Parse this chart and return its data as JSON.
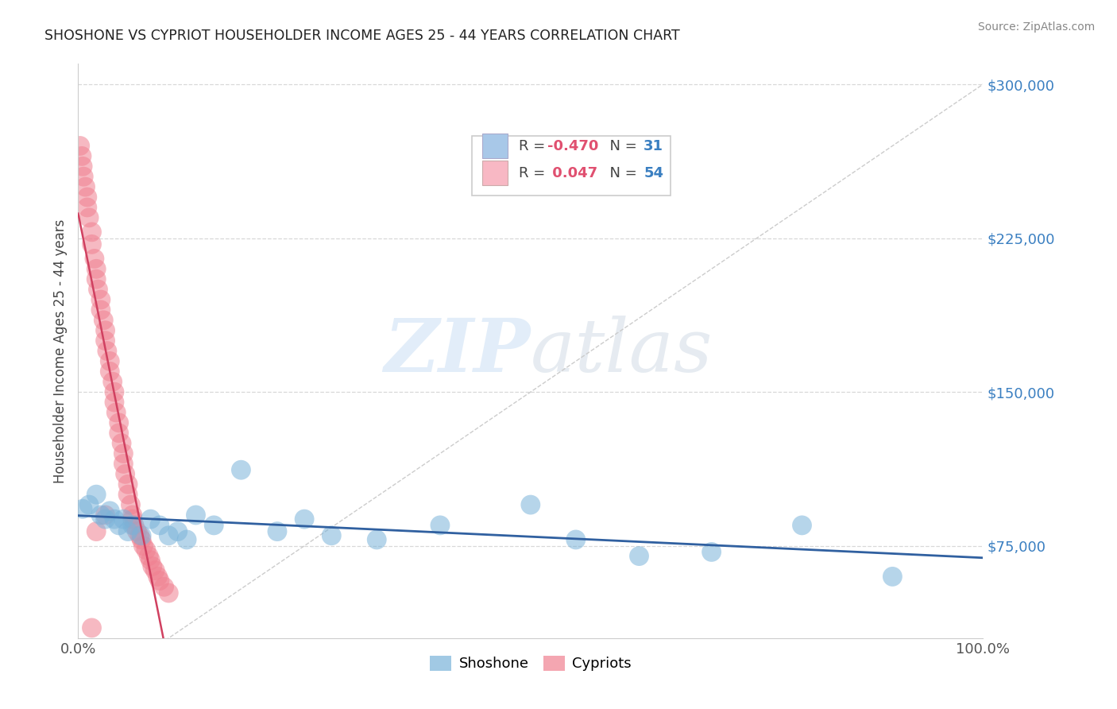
{
  "title": "SHOSHONE VS CYPRIOT HOUSEHOLDER INCOME AGES 25 - 44 YEARS CORRELATION CHART",
  "source": "Source: ZipAtlas.com",
  "ylabel": "Householder Income Ages 25 - 44 years",
  "shoshone_color": "#7ab3d9",
  "cypriot_color": "#f08090",
  "shoshone_line_color": "#3060a0",
  "cypriot_line_color": "#d04060",
  "diagonal_color": "#cccccc",
  "R_shoshone": -0.47,
  "N_shoshone": 31,
  "R_cypriot": 0.047,
  "N_cypriot": 54,
  "shoshone_points_x": [
    0.5,
    1.2,
    2.0,
    2.5,
    3.0,
    3.5,
    4.0,
    4.5,
    5.0,
    5.5,
    6.0,
    7.0,
    8.0,
    9.0,
    10.0,
    11.0,
    12.0,
    13.0,
    15.0,
    18.0,
    22.0,
    25.0,
    28.0,
    33.0,
    40.0,
    50.0,
    55.0,
    62.0,
    70.0,
    80.0,
    90.0
  ],
  "shoshone_points_y": [
    93000,
    95000,
    100000,
    90000,
    88000,
    92000,
    88000,
    85000,
    88000,
    82000,
    85000,
    80000,
    88000,
    85000,
    80000,
    82000,
    78000,
    90000,
    85000,
    112000,
    82000,
    88000,
    80000,
    78000,
    85000,
    95000,
    78000,
    70000,
    72000,
    85000,
    60000
  ],
  "cypriot_points_x": [
    0.2,
    0.4,
    0.5,
    0.6,
    0.8,
    1.0,
    1.0,
    1.2,
    1.5,
    1.5,
    1.8,
    2.0,
    2.0,
    2.2,
    2.5,
    2.5,
    2.8,
    3.0,
    3.0,
    3.2,
    3.5,
    3.5,
    3.8,
    4.0,
    4.0,
    4.2,
    4.5,
    4.5,
    4.8,
    5.0,
    5.0,
    5.2,
    5.5,
    5.5,
    5.8,
    6.0,
    6.0,
    6.2,
    6.5,
    6.8,
    7.0,
    7.2,
    7.5,
    7.8,
    8.0,
    8.2,
    8.5,
    8.8,
    9.0,
    9.5,
    10.0,
    2.0,
    3.0,
    1.5
  ],
  "cypriot_points_y": [
    270000,
    265000,
    260000,
    255000,
    250000,
    245000,
    240000,
    235000,
    228000,
    222000,
    215000,
    210000,
    205000,
    200000,
    195000,
    190000,
    185000,
    180000,
    175000,
    170000,
    165000,
    160000,
    155000,
    150000,
    145000,
    140000,
    135000,
    130000,
    125000,
    120000,
    115000,
    110000,
    105000,
    100000,
    95000,
    90000,
    88000,
    85000,
    82000,
    80000,
    78000,
    75000,
    73000,
    70000,
    68000,
    65000,
    63000,
    60000,
    58000,
    55000,
    52000,
    82000,
    90000,
    35000
  ],
  "xlim": [
    0,
    100
  ],
  "ylim": [
    30000,
    310000
  ],
  "yticks": [
    75000,
    150000,
    225000,
    300000
  ],
  "ytick_labels": [
    "$75,000",
    "$150,000",
    "$225,000",
    "$300,000"
  ],
  "watermark_top": "ZIP",
  "watermark_bottom": "atlas",
  "background_color": "#ffffff",
  "grid_color": "#d8d8d8",
  "legend_shoshone_color": "#a8c8e8",
  "legend_cypriot_color": "#f8b8c4",
  "legend_text_color_r": "#e05070",
  "legend_text_color_n": "#3a7fc1",
  "legend_label_color": "#444444"
}
